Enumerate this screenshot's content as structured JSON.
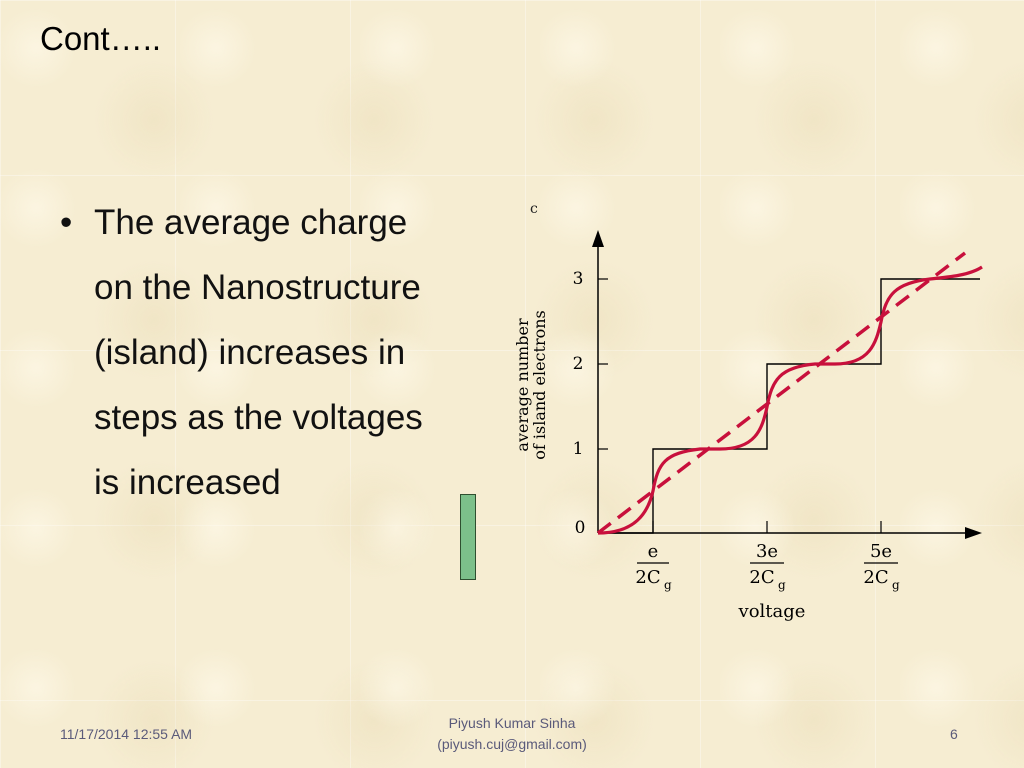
{
  "slide": {
    "title": "Cont…..",
    "bullet_symbol": "•",
    "bullet_lines": [
      "The average charge",
      "on the Nanostructure",
      "(island) increases in",
      "steps as the voltages",
      "is increased"
    ]
  },
  "figure": {
    "corner_label": "c",
    "y_axis_label_line1": "average number",
    "y_axis_label_line2": "of island electrons",
    "x_axis_label": "voltage",
    "y_ticks": [
      "0",
      "1",
      "2",
      "3"
    ],
    "x_ticks": [
      {
        "num": "e",
        "den": "2C",
        "sub": "g"
      },
      {
        "num": "3e",
        "den": "2C",
        "sub": "g"
      },
      {
        "num": "5e",
        "den": "2C",
        "sub": "g"
      }
    ],
    "colors": {
      "step": "#000000",
      "smooth_curve": "#c8103c",
      "dashed_line": "#c8103c"
    }
  },
  "footer": {
    "date": "11/17/2014 12:55 AM",
    "author_line1": "Piyush Kumar Sinha",
    "author_line2": "(piyush.cuj@gmail.com)",
    "page_number": "6"
  }
}
